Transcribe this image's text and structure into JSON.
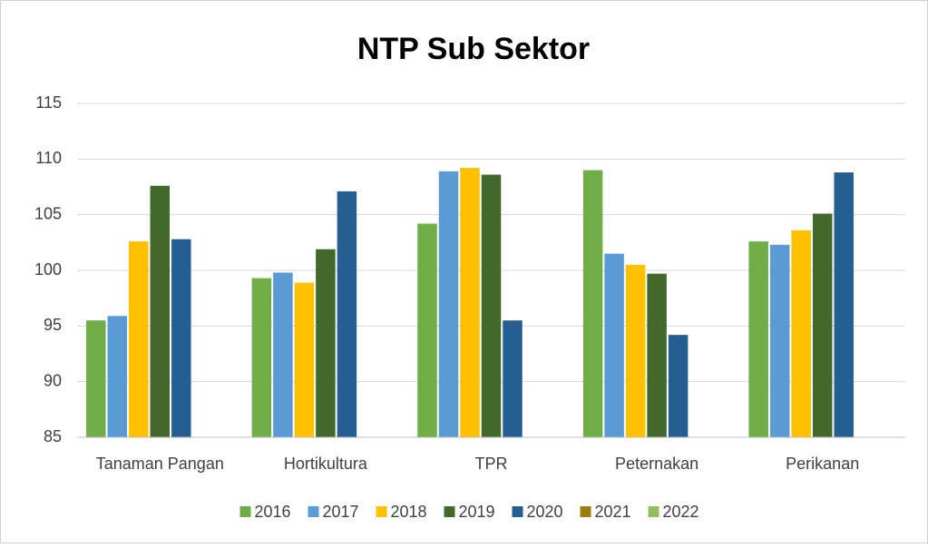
{
  "chart_data": {
    "type": "bar",
    "title": "NTP Sub Sektor",
    "categories": [
      "Tanaman Pangan",
      "Hortikultura",
      "TPR",
      "Peternakan",
      "Perikanan"
    ],
    "series": [
      {
        "name": "2016",
        "color": "#70ad47",
        "values": [
          95.5,
          99.3,
          104.2,
          109.0,
          102.6
        ]
      },
      {
        "name": "2017",
        "color": "#5b9bd5",
        "values": [
          95.9,
          99.8,
          108.9,
          101.5,
          102.3
        ]
      },
      {
        "name": "2018",
        "color": "#ffc000",
        "values": [
          102.6,
          98.9,
          109.2,
          100.5,
          103.6
        ]
      },
      {
        "name": "2019",
        "color": "#43682b",
        "values": [
          107.6,
          101.9,
          108.6,
          99.7,
          105.1
        ]
      },
      {
        "name": "2020",
        "color": "#255e91",
        "values": [
          102.8,
          107.1,
          95.5,
          94.2,
          108.8
        ]
      },
      {
        "name": "2021",
        "color": "#9e7c0c",
        "values": [
          null,
          null,
          null,
          null,
          null
        ]
      },
      {
        "name": "2022",
        "color": "#8fbf5e",
        "values": [
          null,
          null,
          null,
          null,
          null
        ]
      }
    ],
    "ylim": [
      85,
      115
    ],
    "yticks": [
      85,
      90,
      95,
      100,
      105,
      110,
      115
    ],
    "grid": true,
    "legend": "bottom"
  }
}
